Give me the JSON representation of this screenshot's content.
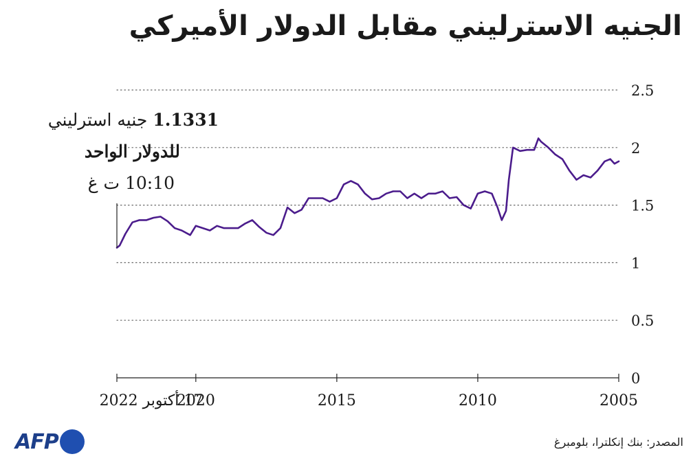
{
  "title": "الجنيه الاسترليني مقابل الدولار الأميركي",
  "annotation": {
    "value": "1.1331",
    "unit": "جنيه استرليني",
    "per": "للدولار الواحد",
    "time": "10:10 ت غ"
  },
  "source": "المصدر: بنك إنكلترا، بلومبرغ",
  "logo": "AFP",
  "colors": {
    "line": "#4b1c8c",
    "grid": "#666666",
    "axis": "#222222",
    "logo": "#1f4fb0"
  },
  "chart_data": {
    "type": "line",
    "title": "الجنيه الاسترليني مقابل الدولار الأميركي",
    "xlabel": "",
    "ylabel": "",
    "x_direction": "right-to-left",
    "xlim": [
      2005,
      2022.8
    ],
    "ylim": [
      0,
      2.5
    ],
    "yticks": [
      0,
      0.5,
      1,
      1.5,
      2,
      2.5
    ],
    "ytick_labels": [
      "0",
      "0.5",
      "1",
      "1.5",
      "2",
      "2.5"
    ],
    "xticks": [
      {
        "value": 2005,
        "label": "2005"
      },
      {
        "value": 2010,
        "label": "2010"
      },
      {
        "value": 2015,
        "label": "2015"
      },
      {
        "value": 2020,
        "label": "2020"
      },
      {
        "value": 2022.8,
        "label": "17 أكتوبر 2022"
      }
    ],
    "grid": "horizontal-dotted",
    "series": [
      {
        "color": "#4b1c8c",
        "x": [
          2005.0,
          2005.15,
          2005.3,
          2005.5,
          2005.75,
          2006.0,
          2006.25,
          2006.5,
          2006.75,
          2007.0,
          2007.25,
          2007.5,
          2007.75,
          2007.85,
          2008.0,
          2008.25,
          2008.5,
          2008.75,
          2008.9,
          2009.0,
          2009.15,
          2009.3,
          2009.5,
          2009.75,
          2010.0,
          2010.25,
          2010.5,
          2010.75,
          2011.0,
          2011.25,
          2011.5,
          2011.75,
          2012.0,
          2012.25,
          2012.5,
          2012.75,
          2013.0,
          2013.25,
          2013.5,
          2013.75,
          2014.0,
          2014.25,
          2014.5,
          2014.75,
          2015.0,
          2015.25,
          2015.5,
          2015.75,
          2016.0,
          2016.25,
          2016.5,
          2016.75,
          2017.0,
          2017.25,
          2017.5,
          2017.75,
          2018.0,
          2018.25,
          2018.5,
          2018.75,
          2019.0,
          2019.25,
          2019.5,
          2019.75,
          2020.0,
          2020.2,
          2020.5,
          2020.75,
          2021.0,
          2021.25,
          2021.5,
          2021.75,
          2022.0,
          2022.25,
          2022.5,
          2022.7,
          2022.8
        ],
        "y": [
          1.88,
          1.86,
          1.9,
          1.88,
          1.8,
          1.74,
          1.76,
          1.72,
          1.8,
          1.9,
          1.94,
          2.0,
          2.05,
          2.08,
          1.98,
          1.98,
          1.97,
          2.0,
          1.72,
          1.45,
          1.37,
          1.48,
          1.6,
          1.62,
          1.6,
          1.47,
          1.5,
          1.57,
          1.56,
          1.62,
          1.6,
          1.6,
          1.56,
          1.6,
          1.56,
          1.62,
          1.62,
          1.6,
          1.56,
          1.55,
          1.6,
          1.68,
          1.71,
          1.68,
          1.56,
          1.53,
          1.56,
          1.56,
          1.56,
          1.46,
          1.43,
          1.48,
          1.3,
          1.24,
          1.26,
          1.31,
          1.37,
          1.34,
          1.3,
          1.3,
          1.3,
          1.32,
          1.28,
          1.3,
          1.32,
          1.24,
          1.28,
          1.3,
          1.36,
          1.4,
          1.39,
          1.37,
          1.37,
          1.35,
          1.25,
          1.15,
          1.13
        ]
      }
    ]
  }
}
